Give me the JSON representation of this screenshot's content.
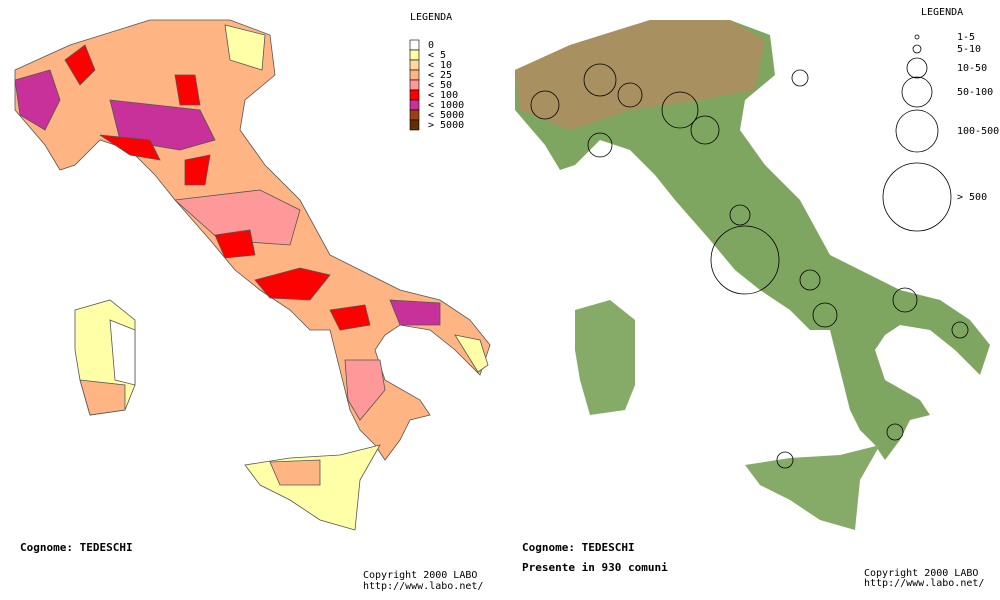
{
  "left_map": {
    "legend_title": "LEGENDA",
    "legend": [
      {
        "label": "0",
        "color": "#ffffff"
      },
      {
        "label": "< 5",
        "color": "#ffffa8"
      },
      {
        "label": "< 10",
        "color": "#ffd8a0"
      },
      {
        "label": "< 25",
        "color": "#ffb484"
      },
      {
        "label": "< 50",
        "color": "#ff9898"
      },
      {
        "label": "< 100",
        "color": "#ff0000"
      },
      {
        "label": "< 1000",
        "color": "#c8309a"
      },
      {
        "label": "< 5000",
        "color": "#a04010"
      },
      {
        "label": "> 5000",
        "color": "#603000"
      }
    ],
    "caption": "Cognome: TEDESCHI",
    "copyright": "Copyright 2000 LABO",
    "url": "http://www.labo.net/"
  },
  "right_map": {
    "legend_title": "LEGENDA",
    "legend": [
      {
        "label": "1-5"
      },
      {
        "label": "5-10"
      },
      {
        "label": "10-50"
      },
      {
        "label": "50-100"
      },
      {
        "label": "100-500"
      },
      {
        "label": "> 500"
      }
    ],
    "caption": "Cognome: TEDESCHI",
    "subtitle": "Presente in 930 comuni",
    "copyright": "Copyright 2000 LABO",
    "url": "http://www.labo.net/"
  }
}
